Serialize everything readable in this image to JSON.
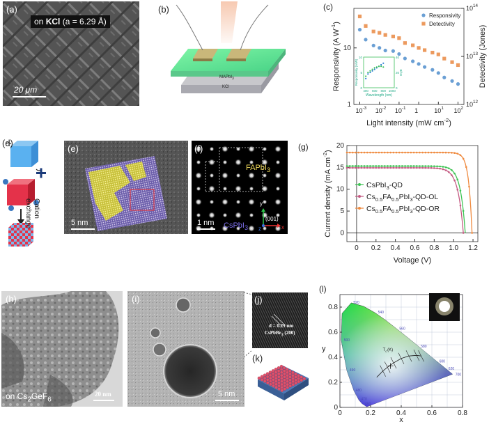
{
  "panels": {
    "a": {
      "label": "(a)",
      "caption_prefix": "on ",
      "caption_bold": "KCl",
      "caption_suffix": " (a = 6.29 Å)",
      "scalebar": "20 μm"
    },
    "b": {
      "label": "(b)",
      "layer_top": "MAPbI",
      "layer_top_sub": "3",
      "layer_bottom": "KCl"
    },
    "d": {
      "label": "(d)",
      "arrow_text_1": "Cation",
      "arrow_text_2": "exchange"
    },
    "e": {
      "label": "(e)",
      "scalebar": "5 nm"
    },
    "f": {
      "label": "(f)",
      "region_top": "FAPbI",
      "region_top_sub": "3",
      "region_bottom": "CsPbI",
      "region_bottom_sub": "3",
      "scalebar": "1 nm",
      "axis_y": "y",
      "axis_x": "x",
      "axis_z": "z",
      "axis_dir": "(001)"
    },
    "h": {
      "label": "(h)",
      "caption_prefix": "on Cs",
      "caption_sub1": "2",
      "caption_mid": "GeF",
      "caption_sub2": "6",
      "scalebar": "20 nm"
    },
    "i": {
      "label": "(i)",
      "scalebar": "5 nm"
    },
    "j": {
      "label": "(j)",
      "dlabel": "d = 0.29 nm",
      "plane": "CsPbBr",
      "plane_sub": "3",
      "plane_suffix": " (200)"
    },
    "k": {
      "label": "(k)"
    },
    "l": {
      "label": "(l)",
      "tc_label": "T",
      "tc_sub": "C",
      "tc_suffix": "(K)"
    }
  },
  "chart_data": [
    {
      "id": "c",
      "label": "(c)",
      "type": "scatter",
      "xlabel": "Light intensity (mW cm",
      "xlabel_sup": "-2",
      "xlabel_end": ")",
      "ylabel_left": "Responsivity (A W",
      "ylabel_left_sup": "-1",
      "ylabel_left_end": ")",
      "ylabel_right": "Detectivity (Jones)",
      "x_log": true,
      "y_log": true,
      "xlim": [
        0.0005,
        200
      ],
      "ylim_left": [
        1,
        50
      ],
      "ylim_right": [
        1000000000000.0,
        100000000000000.0
      ],
      "xticks": [
        0.001,
        0.01,
        0.1,
        1,
        10,
        100
      ],
      "xtick_labels": [
        "10",
        "10",
        "10",
        "1",
        "10",
        "10"
      ],
      "xtick_sups": [
        "-3",
        "-2",
        "-1",
        "",
        "1",
        "2"
      ],
      "yticks_left": [
        1,
        10
      ],
      "ytick_left_labels": [
        "1",
        "10"
      ],
      "yticks_right": [
        1000000000000.0,
        10000000000000.0,
        100000000000000.0
      ],
      "ytick_right_labels": [
        "10",
        "10",
        "10"
      ],
      "ytick_right_sups": [
        "12",
        "13",
        "14"
      ],
      "legend": [
        "Responsivity",
        "Detectivity"
      ],
      "colors": {
        "responsivity": "#6a9fd4",
        "detectivity": "#ec9a5e"
      },
      "series": [
        {
          "name": "Responsivity",
          "axis": "left",
          "x": [
            0.001,
            0.002,
            0.005,
            0.01,
            0.02,
            0.05,
            0.1,
            0.2,
            0.5,
            1,
            2,
            5,
            10,
            20,
            50,
            100
          ],
          "y": [
            21,
            14,
            11,
            10,
            9,
            8.8,
            7.8,
            6.5,
            5.8,
            5.2,
            4.6,
            4.1,
            3.6,
            3.0,
            2.6,
            2.3
          ]
        },
        {
          "name": "Detectivity",
          "axis": "right",
          "x": [
            0.001,
            0.002,
            0.005,
            0.01,
            0.02,
            0.05,
            0.1,
            0.2,
            0.5,
            1,
            2,
            5,
            10,
            20,
            50,
            100
          ],
          "y": [
            68000000000000.0,
            43000000000000.0,
            33000000000000.0,
            31000000000000.0,
            28000000000000.0,
            26000000000000.0,
            24000000000000.0,
            19000000000000.0,
            17000000000000.0,
            15000000000000.0,
            13500000000000.0,
            12000000000000.0,
            11000000000000.0,
            9000000000000.0,
            7600000000000.0,
            6600000000000.0
          ]
        }
      ],
      "inset": {
        "xlabel": "Wavelength (nm)",
        "ylabel_left": "Responsivity (A/W)",
        "ylabel_right": "EQE",
        "xticks": [
          "400",
          "600",
          "800",
          "1000"
        ],
        "yticks_left": [
          "0",
          "5",
          "10"
        ],
        "yticks_right": [
          "0",
          "20",
          "40"
        ],
        "x": [
          400,
          450,
          500,
          550,
          600,
          650,
          700,
          750,
          800
        ],
        "y_resp": [
          3,
          4.5,
          5,
          5.5,
          6,
          6.5,
          7,
          7.5,
          8
        ],
        "y_eqe": [
          15,
          20,
          22,
          24,
          26,
          27,
          28,
          28,
          27
        ]
      }
    },
    {
      "id": "g",
      "label": "(g)",
      "type": "line",
      "xlabel": "Voltage (V)",
      "ylabel": "Current density (mA cm",
      "ylabel_sup": "-2",
      "ylabel_end": ")",
      "xlim": [
        -0.1,
        1.25
      ],
      "ylim": [
        -2,
        20
      ],
      "xticks": [
        0,
        0.2,
        0.4,
        0.6,
        0.8,
        1.0,
        1.2
      ],
      "xtick_labels": [
        "0",
        "0.2",
        "0.4",
        "0.6",
        "0.8",
        "1.0",
        "1.2"
      ],
      "yticks": [
        0,
        5,
        10,
        15,
        20
      ],
      "ytick_labels": [
        "0",
        "5",
        "10",
        "15",
        "20"
      ],
      "series": [
        {
          "name": "CsPbI",
          "name_sub": "3",
          "name_suffix": "-QD",
          "color": "#3fc455",
          "jsc": 15.3,
          "voc": 1.12,
          "n": 0.05
        },
        {
          "name": "Cs",
          "name_sub": "0.5",
          "name_mid": "FA",
          "name_sub2": "0.5",
          "name_mid2": "PbI",
          "name_sub3": "3",
          "name_suffix": "-QD-OL",
          "color": "#c45a82",
          "jsc": 14.9,
          "voc": 1.1,
          "n": 0.055
        },
        {
          "name": "Cs",
          "name_sub": "0.5",
          "name_mid": "FA",
          "name_sub2": "0.5",
          "name_mid2": "PbI",
          "name_sub3": "3",
          "name_suffix": "-QD-OR",
          "color": "#ef8a3f",
          "jsc": 18.4,
          "voc": 1.19,
          "n": 0.035
        }
      ]
    },
    {
      "id": "l",
      "label": "(l)",
      "type": "scatter",
      "xlabel": "x",
      "ylabel": "y",
      "xlim": [
        0,
        0.8
      ],
      "ylim": [
        0,
        0.9
      ],
      "xticks": [
        0,
        0.2,
        0.4,
        0.6,
        0.8
      ],
      "xtick_labels": [
        "0",
        "0.2",
        "0.4",
        "0.6",
        "0.8"
      ],
      "yticks": [
        0,
        0.2,
        0.4,
        0.6,
        0.8
      ],
      "ytick_labels": [
        "0",
        "0.2",
        "0.4",
        "0.6",
        "0.8"
      ],
      "locus_labels": [
        {
          "text": "460",
          "x": 0.145,
          "y": 0.03
        },
        {
          "text": "470",
          "x": 0.12,
          "y": 0.07
        },
        {
          "text": "480",
          "x": 0.085,
          "y": 0.14
        },
        {
          "text": "490",
          "x": 0.045,
          "y": 0.3
        },
        {
          "text": "500",
          "x": 0.008,
          "y": 0.54
        },
        {
          "text": "520",
          "x": 0.07,
          "y": 0.84
        },
        {
          "text": "540",
          "x": 0.23,
          "y": 0.76
        },
        {
          "text": "560",
          "x": 0.37,
          "y": 0.63
        },
        {
          "text": "580",
          "x": 0.51,
          "y": 0.49
        },
        {
          "text": "600",
          "x": 0.63,
          "y": 0.37
        },
        {
          "text": "620",
          "x": 0.69,
          "y": 0.31
        },
        {
          "text": "700",
          "x": 0.735,
          "y": 0.265
        }
      ],
      "point": {
        "x": 0.33,
        "y": 0.33
      }
    }
  ]
}
